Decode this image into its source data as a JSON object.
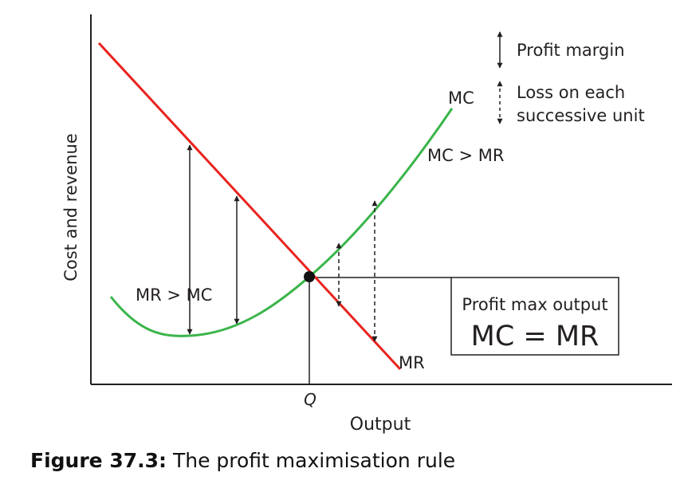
{
  "diagram": {
    "y_axis_label": "Cost and revenue",
    "x_axis_label": "Output",
    "x_tick_label": "Q",
    "mc_label": "MC",
    "mr_label": "MR",
    "mc_gt_mr_label": "MC > MR",
    "mr_gt_mc_label": "MR > MC",
    "box_title": "Profit max output",
    "box_equation": "MC = MR",
    "legend": {
      "profit_margin": "Profit margin",
      "loss_line1": "Loss on each",
      "loss_line2": "successive unit"
    },
    "colors": {
      "mr_line": "#e8231e",
      "mc_curve": "#3ab54a",
      "axes": "#231f20"
    }
  },
  "caption": {
    "label": "Figure 37.3:",
    "text": "The profit maximisation rule"
  }
}
